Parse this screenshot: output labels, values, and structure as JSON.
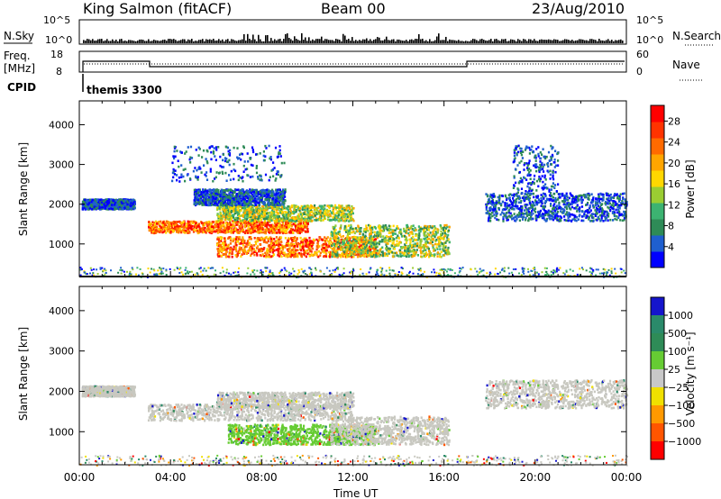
{
  "header": {
    "station": "King Salmon (fitACF)",
    "beam": "Beam 00",
    "date": "23/Aug/2010"
  },
  "top_panels": {
    "nsky_label": "N.Sky",
    "nsky_ticks": [
      "10^5",
      "10^0"
    ],
    "nsearch_label": "N.Search",
    "freq_label_1": "Freq.",
    "freq_label_2": "[MHz]",
    "freq_ticks": [
      "18",
      "8"
    ],
    "nave_label": "Nave",
    "nave_ticks": [
      "60",
      "0"
    ],
    "cpid_label": "CPID",
    "cpid_value": "themis 3300"
  },
  "colors": {
    "power_scale": [
      "#0000ff",
      "#1f5fcf",
      "#2e8b57",
      "#3cb371",
      "#9acd32",
      "#ffd700",
      "#ffa500",
      "#ff6a00",
      "#ff3300",
      "#ff0000"
    ],
    "velocity_scale": [
      "#1515cc",
      "#2a8a6a",
      "#2e8b57",
      "#66cc33",
      "#c8c8c8",
      "#f0e000",
      "#ff9900",
      "#ff5500",
      "#ff0000"
    ],
    "ground_scatter": "#c8c8c0"
  },
  "chart_data": [
    {
      "type": "heatmap",
      "panel": "power",
      "ylabel": "Slant Range [km]",
      "xlim_hours": [
        0,
        24
      ],
      "ylim_km": [
        180,
        4600
      ],
      "yticks": [
        1000,
        2000,
        3000,
        4000
      ],
      "colorbar": {
        "label": "Power [dB]",
        "ticks": [
          4,
          8,
          12,
          16,
          20,
          24,
          28
        ],
        "range": [
          0,
          31
        ]
      },
      "regions": [
        {
          "t0": 0.1,
          "t1": 2.4,
          "r0": 1900,
          "r1": 2150,
          "level": "low"
        },
        {
          "t0": 3.0,
          "t1": 10.0,
          "r0": 1300,
          "r1": 1600,
          "level": "high"
        },
        {
          "t0": 6.0,
          "t1": 12.0,
          "r0": 1600,
          "r1": 2000,
          "level": "mid"
        },
        {
          "t0": 5.0,
          "t1": 9.0,
          "r0": 2000,
          "r1": 2400,
          "level": "low"
        },
        {
          "t0": 6.0,
          "t1": 13.0,
          "r0": 700,
          "r1": 1200,
          "level": "high"
        },
        {
          "t0": 11.0,
          "t1": 16.2,
          "r0": 700,
          "r1": 1500,
          "level": "mid"
        },
        {
          "t0": 4.0,
          "t1": 9.0,
          "r0": 2600,
          "r1": 3500,
          "level": "sparse"
        },
        {
          "t0": 17.8,
          "t1": 24.0,
          "r0": 1600,
          "r1": 2300,
          "level": "low"
        },
        {
          "t0": 19.0,
          "t1": 21.0,
          "r0": 2300,
          "r1": 3500,
          "level": "sparse"
        }
      ]
    },
    {
      "type": "heatmap",
      "panel": "velocity",
      "ylabel": "Slant Range [km]",
      "xlabel": "Time UT",
      "xlim_hours": [
        0,
        24
      ],
      "ylim_km": [
        180,
        4600
      ],
      "yticks": [
        1000,
        2000,
        3000,
        4000
      ],
      "xticks": [
        "00:00",
        "04:00",
        "08:00",
        "12:00",
        "16:00",
        "20:00",
        "00:00"
      ],
      "colorbar": {
        "label": "Velocity [m s⁻¹]",
        "ticks": [
          "1000",
          "500",
          "100",
          "25",
          "−25",
          "−100",
          "−500",
          "−1000"
        ]
      },
      "regions": [
        {
          "t0": 3.0,
          "t1": 12.0,
          "r0": 1300,
          "r1": 1700,
          "level": "ground"
        },
        {
          "t0": 6.0,
          "t1": 12.0,
          "r0": 1600,
          "r1": 2000,
          "level": "ground"
        },
        {
          "t0": 6.5,
          "t1": 13.0,
          "r0": 700,
          "r1": 1200,
          "level": "pos"
        },
        {
          "t0": 11.0,
          "t1": 16.2,
          "r0": 700,
          "r1": 1400,
          "level": "ground"
        },
        {
          "t0": 0.1,
          "t1": 2.4,
          "r0": 1900,
          "r1": 2150,
          "level": "ground"
        },
        {
          "t0": 17.8,
          "t1": 24.0,
          "r0": 1600,
          "r1": 2300,
          "level": "ground"
        }
      ]
    }
  ]
}
